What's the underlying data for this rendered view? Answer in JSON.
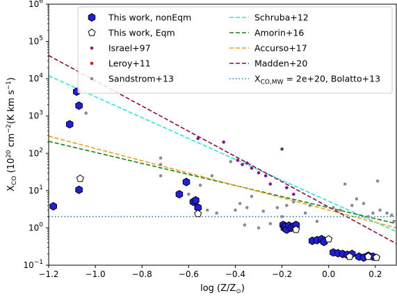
{
  "chart_data": {
    "type": "scatter",
    "title": "",
    "xlabel_main": "log (Z/Z",
    "xlabel_sub": "⊙",
    "xlabel_end": ")",
    "ylabel_main": "X",
    "ylabel_sub": "CO",
    "ylabel_pre": " (10",
    "ylabel_sup1": "20",
    "ylabel_mid": " cm",
    "ylabel_sup2": "−2",
    "ylabel_units": "(K km s",
    "ylabel_sup3": "−1",
    "ylabel_end": ")",
    "log_y": true,
    "xlim": [
      -1.2,
      0.29
    ],
    "ylim_exp": [
      -1,
      6
    ],
    "x_ticks": [
      {
        "value": -1.2,
        "label": "−1.2"
      },
      {
        "value": -1.0,
        "label": "−1.0"
      },
      {
        "value": -0.8,
        "label": "−0.8"
      },
      {
        "value": -0.6,
        "label": "−0.6"
      },
      {
        "value": -0.4,
        "label": "−0.4"
      },
      {
        "value": -0.2,
        "label": "−0.2"
      },
      {
        "value": 0.0,
        "label": "0.0"
      },
      {
        "value": 0.2,
        "label": "0.2"
      }
    ],
    "y_ticks": [
      {
        "exp": -1,
        "base": "10",
        "sup": "−1"
      },
      {
        "exp": 0,
        "base": "10",
        "sup": "0"
      },
      {
        "exp": 1,
        "base": "10",
        "sup": "1"
      },
      {
        "exp": 2,
        "base": "10",
        "sup": "2"
      },
      {
        "exp": 3,
        "base": "10",
        "sup": "3"
      },
      {
        "exp": 4,
        "base": "10",
        "sup": "4"
      },
      {
        "exp": 5,
        "base": "10",
        "sup": "5"
      },
      {
        "exp": 6,
        "base": "10",
        "sup": "6"
      }
    ],
    "legend_position": "top-right",
    "legend": [
      {
        "key": "noneqm",
        "label": "This work, nonEqm",
        "kind": "hexagon",
        "color": "#1f1fe0",
        "edge": "#000000"
      },
      {
        "key": "eqm",
        "label": "This work, Eqm",
        "kind": "pentagon",
        "color": "#ffffff",
        "edge": "#000000"
      },
      {
        "key": "israel",
        "label": "Israel+97",
        "kind": "dot",
        "color": "#7b1b8a"
      },
      {
        "key": "leroy",
        "label": "Leroy+11",
        "kind": "dot",
        "color": "#ff0000"
      },
      {
        "key": "sandstrom",
        "label": "Sandstrom+13",
        "kind": "dot",
        "color": "#8c8c8c"
      },
      {
        "key": "schruba",
        "label": "Schruba+12",
        "kind": "dashed",
        "color": "#22e8e8"
      },
      {
        "key": "amorin",
        "label": "Amorin+16",
        "kind": "dashed",
        "color": "#1a7d1a"
      },
      {
        "key": "accurso",
        "label": "Accurso+17",
        "kind": "dashed",
        "color": "#f0a010"
      },
      {
        "key": "madden",
        "label": "Madden+20",
        "kind": "dashed",
        "color": "#8b0a3a"
      },
      {
        "key": "bolatto",
        "label_pre": "X",
        "label_sub": "CO,MW",
        "label_post": " = 2e+20, Bolatto+13",
        "kind": "dotted",
        "color": "#1f77b4"
      }
    ],
    "lines": [
      {
        "key": "schruba",
        "x": [
          -1.2,
          0.29
        ],
        "y": [
          12000,
          0.8
        ]
      },
      {
        "key": "amorin",
        "x": [
          -1.2,
          0.29
        ],
        "y": [
          210,
          1.3
        ]
      },
      {
        "key": "accurso",
        "x": [
          -1.2,
          0.29
        ],
        "y": [
          290,
          1.0
        ]
      },
      {
        "key": "madden",
        "x": [
          -1.2,
          0.29
        ],
        "y": [
          42000,
          0.38
        ]
      },
      {
        "key": "bolatto",
        "x": [
          -1.2,
          0.29
        ],
        "y": [
          2,
          2
        ]
      }
    ],
    "series": [
      {
        "key": "noneqm",
        "points": [
          [
            -1.18,
            3.8
          ],
          [
            -1.11,
            600
          ],
          [
            -1.08,
            4500
          ],
          [
            -1.07,
            1900
          ],
          [
            -1.07,
            10.5
          ],
          [
            -0.64,
            8
          ],
          [
            -0.61,
            17
          ],
          [
            -0.58,
            5
          ],
          [
            -0.57,
            5.5
          ],
          [
            -0.56,
            3.5
          ],
          [
            -0.195,
            1.2
          ],
          [
            -0.19,
            1.0
          ],
          [
            -0.185,
            1.1
          ],
          [
            -0.18,
            0.9
          ],
          [
            -0.17,
            1.15
          ],
          [
            -0.16,
            1.0
          ],
          [
            -0.15,
            1.1
          ],
          [
            -0.14,
            1.2
          ],
          [
            -0.07,
            0.45
          ],
          [
            -0.05,
            0.47
          ],
          [
            -0.03,
            0.5
          ],
          [
            -0.02,
            0.42
          ],
          [
            0.02,
            0.22
          ],
          [
            0.04,
            0.21
          ],
          [
            0.06,
            0.2
          ],
          [
            0.08,
            0.19
          ],
          [
            0.1,
            0.2
          ],
          [
            0.13,
            0.17
          ],
          [
            0.15,
            0.16
          ],
          [
            0.17,
            0.18
          ],
          [
            0.19,
            0.17
          ]
        ]
      },
      {
        "key": "eqm",
        "points": [
          [
            -1.065,
            21
          ],
          [
            -0.56,
            2.4
          ],
          [
            -0.14,
            0.9
          ],
          [
            0.0,
            0.5
          ],
          [
            0.09,
            0.17
          ],
          [
            0.17,
            0.17
          ],
          [
            0.205,
            0.16
          ]
        ]
      },
      {
        "key": "israel",
        "points": [
          [
            -0.56,
            250
          ],
          [
            -0.45,
            200
          ],
          [
            -0.39,
            65
          ],
          [
            -0.37,
            50
          ],
          [
            -0.35,
            55
          ],
          [
            -0.33,
            40
          ],
          [
            -0.3,
            30
          ],
          [
            -0.27,
            25
          ],
          [
            -0.25,
            15
          ],
          [
            -0.2,
            130
          ],
          [
            -0.18,
            12
          ],
          [
            -0.15,
            8
          ]
        ]
      },
      {
        "key": "leroy",
        "points": []
      },
      {
        "key": "sandstrom",
        "points": [
          [
            -1.04,
            1200
          ],
          [
            -0.72,
            75
          ],
          [
            -0.72,
            50
          ],
          [
            -0.72,
            25
          ],
          [
            -0.6,
            8
          ],
          [
            -0.55,
            14
          ],
          [
            -0.52,
            3
          ],
          [
            -0.5,
            25
          ],
          [
            -0.48,
            2.5
          ],
          [
            -0.42,
            60
          ],
          [
            -0.4,
            3
          ],
          [
            -0.38,
            4.5
          ],
          [
            -0.36,
            1.2
          ],
          [
            -0.35,
            3.5
          ],
          [
            -0.33,
            7
          ],
          [
            -0.3,
            1.0
          ],
          [
            -0.28,
            2.8
          ],
          [
            -0.25,
            1.3
          ],
          [
            -0.22,
            3.5
          ],
          [
            -0.2,
            2
          ],
          [
            -0.18,
            4
          ],
          [
            -0.15,
            5
          ],
          [
            -0.13,
            1.0
          ],
          [
            -0.1,
            2.5
          ],
          [
            -0.08,
            4
          ],
          [
            -0.05,
            1.5
          ],
          [
            0.02,
            3.5
          ],
          [
            0.05,
            3
          ],
          [
            0.07,
            15
          ],
          [
            0.1,
            4
          ],
          [
            0.12,
            6
          ],
          [
            0.15,
            4.5
          ],
          [
            0.17,
            2
          ],
          [
            0.19,
            2.5
          ],
          [
            0.21,
            18
          ],
          [
            0.22,
            3
          ],
          [
            0.25,
            2.5
          ],
          [
            0.27,
            2.2
          ],
          [
            0.28,
            1.5
          ]
        ]
      }
    ]
  }
}
